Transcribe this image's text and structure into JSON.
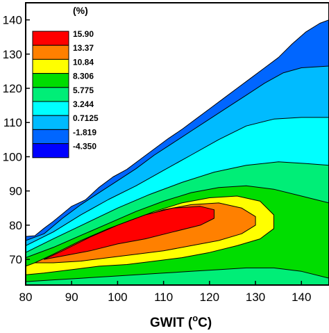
{
  "chart_data": {
    "type": "contour",
    "title": "",
    "xlabel": "GWIT (",
    "xlabel_sup": "o",
    "xlabel_tail": "C)",
    "ylabel": "",
    "x_ticks": [
      80,
      90,
      100,
      110,
      120,
      130,
      140
    ],
    "y_ticks": [
      70,
      80,
      90,
      100,
      110,
      120,
      130,
      140
    ],
    "xlim": [
      80,
      146
    ],
    "ylim": [
      62.5,
      145
    ],
    "legend_title": "(%)",
    "legend_placement": "top-left",
    "levels": [
      "15.90",
      "13.37",
      "10.84",
      "8.306",
      "5.775",
      "3.244",
      "0.7125",
      "-1.819",
      "-4.350"
    ],
    "level_colors": [
      "#ff0000",
      "#ff8000",
      "#ffff00",
      "#00dd00",
      "#00ee77",
      "#00ffff",
      "#00bbff",
      "#0066ff",
      "#0000ff"
    ],
    "contour_bands": [
      {
        "level": "-1.819",
        "color": "#0066ff",
        "polygon": [
          [
            80,
            76.7
          ],
          [
            82,
            76.9
          ],
          [
            84,
            79.1
          ],
          [
            86,
            81.1
          ],
          [
            88,
            83.3
          ],
          [
            90,
            85.5
          ],
          [
            93,
            87.4
          ],
          [
            96,
            91.1
          ],
          [
            99,
            94.1
          ],
          [
            102,
            96.3
          ],
          [
            105,
            99.3
          ],
          [
            108,
            102.3
          ],
          [
            111,
            105.3
          ],
          [
            114,
            108.0
          ],
          [
            117,
            111.0
          ],
          [
            120,
            114.0
          ],
          [
            123,
            117.0
          ],
          [
            126,
            120.0
          ],
          [
            129,
            123.0
          ],
          [
            132,
            126.0
          ],
          [
            135,
            129.0
          ],
          [
            138,
            133.0
          ],
          [
            141,
            136.5
          ],
          [
            144,
            139.0
          ],
          [
            146,
            140.0
          ],
          [
            146,
            62.5
          ],
          [
            80,
            62.5
          ]
        ]
      },
      {
        "level": "0.7125",
        "color": "#00bbff",
        "polygon": [
          [
            80,
            75.5
          ],
          [
            84,
            77.5
          ],
          [
            88,
            82.0
          ],
          [
            92,
            86.0
          ],
          [
            96,
            89.5
          ],
          [
            100,
            93.0
          ],
          [
            104,
            96.5
          ],
          [
            108,
            100.5
          ],
          [
            112,
            104.0
          ],
          [
            116,
            107.5
          ],
          [
            120,
            111.0
          ],
          [
            124,
            114.5
          ],
          [
            128,
            118.0
          ],
          [
            132,
            121.5
          ],
          [
            136,
            124.5
          ],
          [
            140,
            126.0
          ],
          [
            146,
            126.5
          ],
          [
            146,
            62.5
          ],
          [
            80,
            62.5
          ]
        ]
      },
      {
        "level": "3.244",
        "color": "#00ffff",
        "polygon": [
          [
            80,
            74.0
          ],
          [
            86,
            78.0
          ],
          [
            92,
            83.0
          ],
          [
            98,
            87.5
          ],
          [
            104,
            91.5
          ],
          [
            110,
            96.0
          ],
          [
            116,
            100.5
          ],
          [
            122,
            105.0
          ],
          [
            128,
            109.0
          ],
          [
            134,
            111.0
          ],
          [
            140,
            111.5
          ],
          [
            146,
            111.5
          ],
          [
            146,
            62.5
          ],
          [
            80,
            62.5
          ]
        ]
      },
      {
        "level": "5.775",
        "color": "#00ee77",
        "polygon": [
          [
            80,
            72.0
          ],
          [
            86,
            76.0
          ],
          [
            93,
            80.5
          ],
          [
            100,
            85.0
          ],
          [
            107,
            89.0
          ],
          [
            114,
            92.5
          ],
          [
            121,
            95.5
          ],
          [
            128,
            97.5
          ],
          [
            135,
            98.5
          ],
          [
            141,
            98.0
          ],
          [
            146,
            97.5
          ],
          [
            146,
            62.5
          ],
          [
            80,
            62.5
          ]
        ]
      },
      {
        "level": "8.306",
        "color": "#00dd00",
        "polygon": [
          [
            80,
            70.5
          ],
          [
            86,
            73.5
          ],
          [
            92,
            77.0
          ],
          [
            98,
            80.5
          ],
          [
            104,
            84.0
          ],
          [
            110,
            87.0
          ],
          [
            116,
            89.5
          ],
          [
            122,
            91.0
          ],
          [
            128,
            91.5
          ],
          [
            134,
            90.5
          ],
          [
            140,
            88.5
          ],
          [
            146,
            86.5
          ],
          [
            146,
            64.5
          ],
          [
            140,
            66.5
          ],
          [
            134,
            67.5
          ],
          [
            128,
            67.5
          ],
          [
            122,
            67.0
          ],
          [
            116,
            66.5
          ],
          [
            110,
            66.0
          ],
          [
            104,
            65.5
          ],
          [
            98,
            65.0
          ],
          [
            92,
            64.5
          ],
          [
            86,
            64.0
          ],
          [
            80,
            63.5
          ]
        ]
      },
      {
        "level": "10.84",
        "color": "#ffff00",
        "polygon": [
          [
            80,
            68.0
          ],
          [
            84,
            70.0
          ],
          [
            90,
            74.0
          ],
          [
            96,
            77.5
          ],
          [
            102,
            81.0
          ],
          [
            108,
            84.0
          ],
          [
            114,
            86.5
          ],
          [
            120,
            88.0
          ],
          [
            126,
            88.5
          ],
          [
            131,
            87.0
          ],
          [
            134,
            83.0
          ],
          [
            134,
            79.0
          ],
          [
            131,
            76.0
          ],
          [
            126,
            74.0
          ],
          [
            120,
            72.0
          ],
          [
            114,
            70.5
          ],
          [
            108,
            69.5
          ],
          [
            102,
            68.5
          ],
          [
            96,
            68.0
          ],
          [
            90,
            67.0
          ],
          [
            84,
            66.0
          ],
          [
            80,
            65.5
          ]
        ]
      },
      {
        "level": "13.37",
        "color": "#ff8000",
        "polygon": [
          [
            82,
            69.0
          ],
          [
            86,
            71.5
          ],
          [
            92,
            75.5
          ],
          [
            98,
            79.0
          ],
          [
            104,
            82.0
          ],
          [
            110,
            84.5
          ],
          [
            116,
            86.0
          ],
          [
            122,
            86.5
          ],
          [
            127,
            85.0
          ],
          [
            130,
            82.5
          ],
          [
            130,
            80.0
          ],
          [
            127,
            77.5
          ],
          [
            122,
            75.5
          ],
          [
            116,
            74.0
          ],
          [
            110,
            72.5
          ],
          [
            104,
            71.5
          ],
          [
            98,
            70.5
          ],
          [
            92,
            69.5
          ],
          [
            86,
            69.0
          ]
        ]
      },
      {
        "level": "15.90",
        "color": "#ff0000",
        "polygon": [
          [
            84,
            70.0
          ],
          [
            88,
            72.5
          ],
          [
            94,
            76.5
          ],
          [
            100,
            80.0
          ],
          [
            106,
            83.0
          ],
          [
            112,
            85.0
          ],
          [
            118,
            85.5
          ],
          [
            121,
            84.5
          ],
          [
            121,
            82.0
          ],
          [
            118,
            80.0
          ],
          [
            112,
            78.0
          ],
          [
            106,
            76.0
          ],
          [
            100,
            74.5
          ],
          [
            94,
            72.5
          ],
          [
            88,
            71.0
          ],
          [
            84,
            70.0
          ]
        ]
      }
    ]
  }
}
